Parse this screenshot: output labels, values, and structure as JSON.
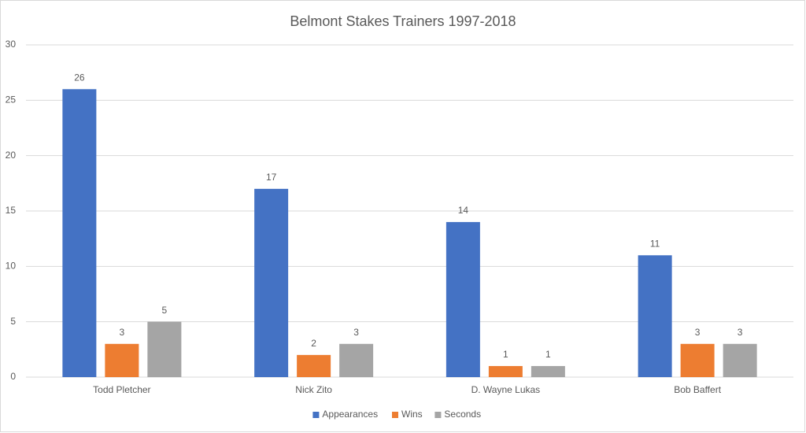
{
  "chart_data": {
    "type": "bar",
    "title": "Belmont Stakes Trainers 1997-2018",
    "categories": [
      "Todd Pletcher",
      "Nick Zito",
      "D. Wayne Lukas",
      "Bob Baffert"
    ],
    "series": [
      {
        "name": "Appearances",
        "color": "#4472c4",
        "values": [
          26,
          17,
          14,
          11
        ]
      },
      {
        "name": "Wins",
        "color": "#ed7d31",
        "values": [
          3,
          2,
          1,
          3
        ]
      },
      {
        "name": "Seconds",
        "color": "#a5a5a5",
        "values": [
          5,
          3,
          1,
          3
        ]
      }
    ],
    "ylim": [
      0,
      30
    ],
    "yticks": [
      0,
      5,
      10,
      15,
      20,
      25,
      30
    ],
    "grid": true,
    "data_labels": true,
    "legend": "bottom"
  }
}
